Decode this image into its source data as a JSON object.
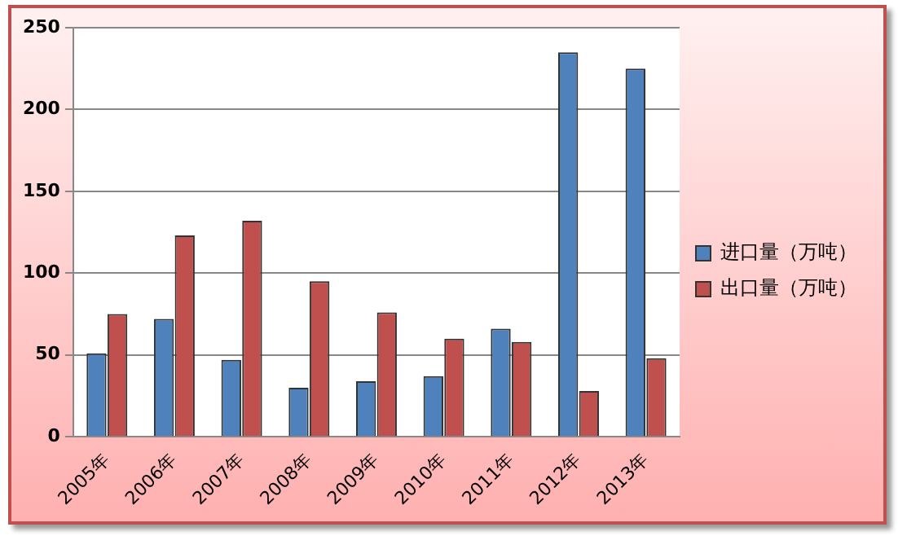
{
  "chart_data": {
    "type": "bar",
    "categories": [
      "2005年",
      "2006年",
      "2007年",
      "2008年",
      "2009年",
      "2010年",
      "2011年",
      "2012年",
      "2013年"
    ],
    "series": [
      {
        "name": "进口量（万吨）",
        "color": "#4f81bd",
        "values": [
          51,
          72,
          47,
          30,
          34,
          37,
          66,
          235,
          225
        ]
      },
      {
        "name": "出口量（万吨）",
        "color": "#c0504d",
        "values": [
          75,
          123,
          132,
          95,
          76,
          60,
          58,
          28,
          48
        ]
      }
    ],
    "ylim": [
      0,
      250
    ],
    "yticks": [
      0,
      50,
      100,
      150,
      200,
      250
    ],
    "grid": "y",
    "legend": "right"
  }
}
